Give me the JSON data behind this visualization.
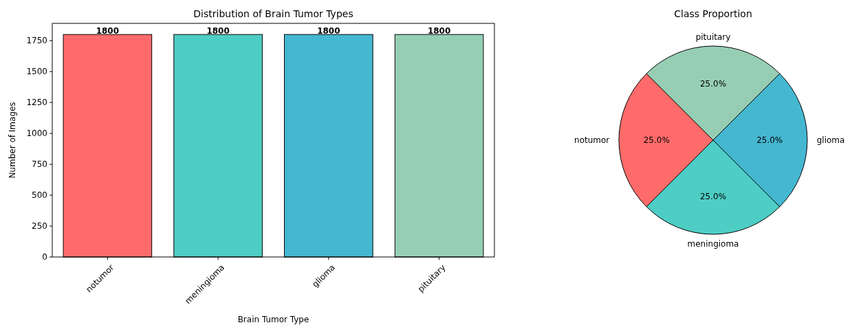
{
  "chart_data": [
    {
      "type": "bar",
      "title": "Distribution of Brain Tumor Types",
      "xlabel": "Brain Tumor Type",
      "ylabel": "Number of Images",
      "categories": [
        "notumor",
        "meningioma",
        "glioma",
        "pituitary"
      ],
      "values": [
        1800,
        1800,
        1800,
        1800
      ],
      "colors": [
        "#ff6b6b",
        "#4ecdc4",
        "#45b7d1",
        "#96ceb4"
      ],
      "ylim": [
        0,
        1890
      ],
      "yticks": [
        0,
        250,
        500,
        750,
        1000,
        1250,
        1500,
        1750
      ],
      "data_labels": true
    },
    {
      "type": "pie",
      "title": "Class Proportion",
      "categories": [
        "notumor",
        "meningioma",
        "glioma",
        "pituitary"
      ],
      "values": [
        25,
        25,
        25,
        25
      ],
      "colors": [
        "#ff6b6b",
        "#4ecdc4",
        "#45b7d1",
        "#96ceb4"
      ],
      "value_labels": [
        "25.0%",
        "25.0%",
        "25.0%",
        "25.0%"
      ]
    }
  ]
}
